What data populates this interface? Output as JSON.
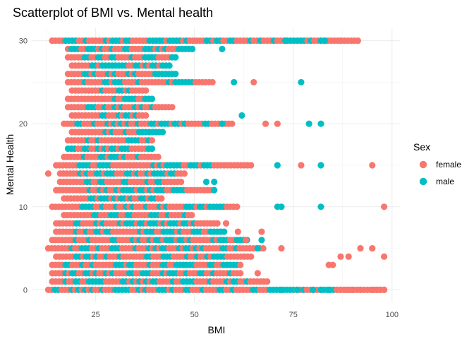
{
  "chart_data": {
    "type": "scatter",
    "title": "Scatterplot of BMI vs. Mental health",
    "xlabel": "BMI",
    "ylabel": "Mental Health",
    "xlim": [
      9,
      102
    ],
    "ylim": [
      -1.5,
      31.5
    ],
    "x_ticks": [
      25,
      50,
      75,
      100
    ],
    "y_ticks": [
      0,
      10,
      20,
      30
    ],
    "grid": true,
    "legend": {
      "title": "Sex",
      "position": "right",
      "entries": [
        {
          "label": "female",
          "color": "#F8766D"
        },
        {
          "label": "male",
          "color": "#00BFC4"
        }
      ]
    },
    "series": [
      {
        "name": "female",
        "color": "#F8766D",
        "rows": [
          {
            "y": 0,
            "min": 13,
            "max": 98,
            "extra": [
              86,
              87,
              88,
              89,
              90,
              92,
              95,
              96,
              97,
              98
            ]
          },
          {
            "y": 1,
            "min": 14,
            "max": 69,
            "extra": []
          },
          {
            "y": 2,
            "min": 14,
            "max": 62,
            "extra": [
              66
            ]
          },
          {
            "y": 3,
            "min": 14,
            "max": 62,
            "extra": [
              84,
              85
            ]
          },
          {
            "y": 4,
            "min": 15,
            "max": 65,
            "extra": [
              87,
              89,
              98
            ]
          },
          {
            "y": 5,
            "min": 13,
            "max": 68,
            "extra": [
              72,
              92,
              95
            ]
          },
          {
            "y": 6,
            "min": 14,
            "max": 60,
            "extra": [
              63
            ]
          },
          {
            "y": 7,
            "min": 15,
            "max": 54,
            "extra": [
              61,
              67
            ]
          },
          {
            "y": 8,
            "min": 15,
            "max": 56,
            "extra": [
              58
            ]
          },
          {
            "y": 9,
            "min": 17,
            "max": 50,
            "extra": []
          },
          {
            "y": 10,
            "min": 14,
            "max": 61,
            "extra": [
              98
            ]
          },
          {
            "y": 11,
            "min": 17,
            "max": 42,
            "extra": []
          },
          {
            "y": 12,
            "min": 15,
            "max": 55,
            "extra": []
          },
          {
            "y": 13,
            "min": 16,
            "max": 47,
            "extra": []
          },
          {
            "y": 14,
            "min": 16,
            "max": 48,
            "extra": [
              13
            ]
          },
          {
            "y": 15,
            "min": 15,
            "max": 65,
            "extra": [
              77,
              95
            ]
          },
          {
            "y": 16,
            "min": 17,
            "max": 41,
            "extra": []
          },
          {
            "y": 17,
            "min": 18,
            "max": 38,
            "extra": []
          },
          {
            "y": 18,
            "min": 18,
            "max": 40,
            "extra": []
          },
          {
            "y": 19,
            "min": 19,
            "max": 36,
            "extra": []
          },
          {
            "y": 20,
            "min": 17,
            "max": 60,
            "extra": [
              68,
              71
            ]
          },
          {
            "y": 21,
            "min": 19,
            "max": 38,
            "extra": []
          },
          {
            "y": 22,
            "min": 18,
            "max": 45,
            "extra": []
          },
          {
            "y": 23,
            "min": 18,
            "max": 38,
            "extra": []
          },
          {
            "y": 24,
            "min": 19,
            "max": 38,
            "extra": []
          },
          {
            "y": 25,
            "min": 18,
            "max": 55,
            "extra": [
              65
            ]
          },
          {
            "y": 26,
            "min": 18,
            "max": 40,
            "extra": []
          },
          {
            "y": 27,
            "min": 19,
            "max": 42,
            "extra": []
          },
          {
            "y": 28,
            "min": 18,
            "max": 44,
            "extra": []
          },
          {
            "y": 29,
            "min": 18,
            "max": 46,
            "extra": []
          },
          {
            "y": 30,
            "min": 14,
            "max": 92,
            "extra": [
              87
            ]
          }
        ]
      },
      {
        "name": "male",
        "color": "#00BFC4",
        "rows": [
          {
            "y": 0,
            "min": 14,
            "max": 86,
            "extra": [
              72,
              76,
              80,
              82,
              84
            ]
          },
          {
            "y": 1,
            "min": 17,
            "max": 64,
            "extra": []
          },
          {
            "y": 2,
            "min": 17,
            "max": 60,
            "extra": []
          },
          {
            "y": 3,
            "min": 17,
            "max": 62,
            "extra": []
          },
          {
            "y": 4,
            "min": 18,
            "max": 58,
            "extra": []
          },
          {
            "y": 5,
            "min": 18,
            "max": 62,
            "extra": [
              66
            ]
          },
          {
            "y": 6,
            "min": 19,
            "max": 64,
            "extra": [
              67
            ]
          },
          {
            "y": 7,
            "min": 19,
            "max": 58,
            "extra": []
          },
          {
            "y": 8,
            "min": 20,
            "max": 52,
            "extra": []
          },
          {
            "y": 9,
            "min": 22,
            "max": 48,
            "extra": []
          },
          {
            "y": 10,
            "min": 19,
            "max": 58,
            "extra": [
              71,
              72,
              82
            ]
          },
          {
            "y": 11,
            "min": 23,
            "max": 40,
            "extra": []
          },
          {
            "y": 12,
            "min": 21,
            "max": 48,
            "extra": [
              55
            ]
          },
          {
            "y": 13,
            "min": 22,
            "max": 44,
            "extra": [
              53,
              55
            ]
          },
          {
            "y": 14,
            "min": 20,
            "max": 46,
            "extra": []
          },
          {
            "y": 15,
            "min": 18,
            "max": 56,
            "extra": [
              71,
              82
            ]
          },
          {
            "y": 16,
            "min": 22,
            "max": 40,
            "extra": []
          },
          {
            "y": 17,
            "min": 18,
            "max": 40,
            "extra": []
          },
          {
            "y": 18,
            "min": 22,
            "max": 40,
            "extra": []
          },
          {
            "y": 19,
            "min": 19,
            "max": 42,
            "extra": []
          },
          {
            "y": 20,
            "min": 20,
            "max": 54,
            "extra": [
              57,
              79,
              82
            ]
          },
          {
            "y": 21,
            "min": 26,
            "max": 36,
            "extra": [
              62
            ]
          },
          {
            "y": 22,
            "min": 22,
            "max": 40,
            "extra": []
          },
          {
            "y": 23,
            "min": 25,
            "max": 40,
            "extra": []
          },
          {
            "y": 24,
            "min": 24,
            "max": 34,
            "extra": []
          },
          {
            "y": 25,
            "min": 22,
            "max": 50,
            "extra": [
              60,
              77
            ]
          },
          {
            "y": 26,
            "min": 22,
            "max": 46,
            "extra": []
          },
          {
            "y": 27,
            "min": 22,
            "max": 44,
            "extra": []
          },
          {
            "y": 28,
            "min": 22,
            "max": 46,
            "extra": []
          },
          {
            "y": 29,
            "min": 18,
            "max": 50,
            "extra": [
              57
            ]
          },
          {
            "y": 30,
            "min": 15,
            "max": 82,
            "extra": [
              73,
              82,
              83
            ]
          }
        ]
      }
    ]
  }
}
